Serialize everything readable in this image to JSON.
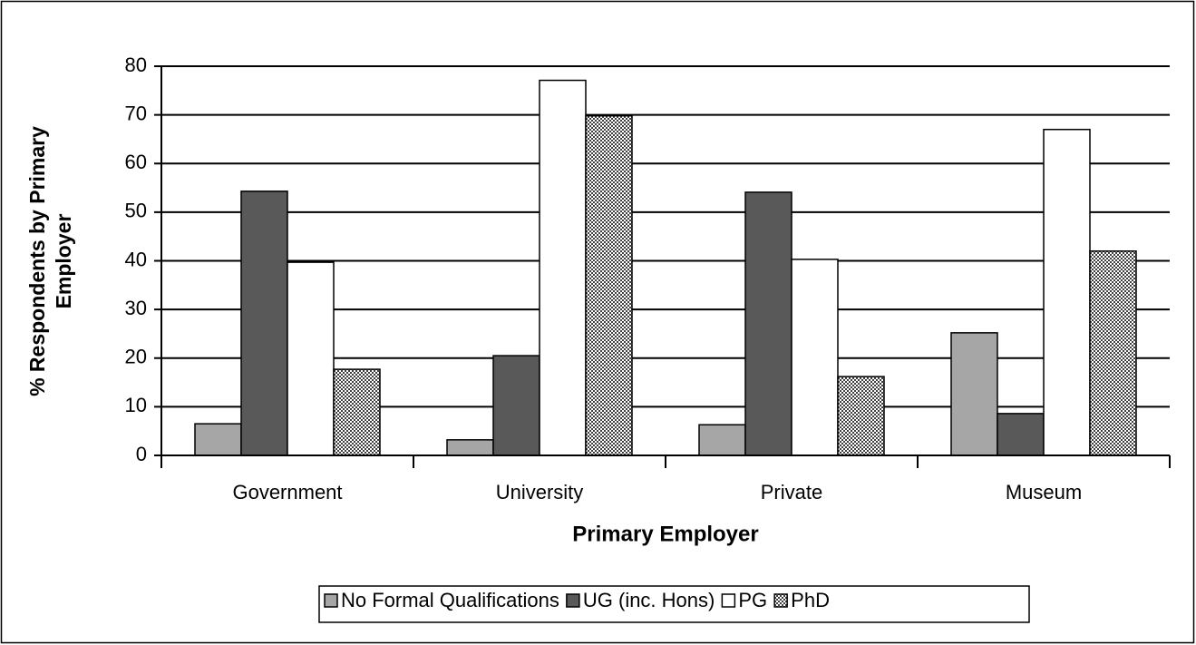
{
  "chart_data": {
    "type": "bar",
    "xlabel": "Primary Employer",
    "ylabel": "% Respondents by Primary Employer",
    "categories": [
      "Government",
      "University",
      "Private",
      "Museum"
    ],
    "series": [
      {
        "name": "No Formal Qualifications",
        "color": "#a6a6a6",
        "values": [
          6.5,
          3.2,
          6.3,
          25.2
        ]
      },
      {
        "name": "UG (inc. Hons)",
        "color": "#595959",
        "values": [
          54.3,
          20.5,
          54.1,
          8.6
        ]
      },
      {
        "name": "PG",
        "color": "#ffffff",
        "values": [
          39.7,
          77.1,
          40.3,
          67
        ]
      },
      {
        "name": "PhD",
        "color": "#404040",
        "pattern": "checker",
        "values": [
          17.7,
          69.8,
          16.2,
          42
        ]
      }
    ],
    "ylim": [
      0,
      80
    ],
    "yticks": [
      0,
      10,
      20,
      30,
      40,
      50,
      60,
      70,
      80
    ],
    "grid": true,
    "legend": "bottom"
  }
}
